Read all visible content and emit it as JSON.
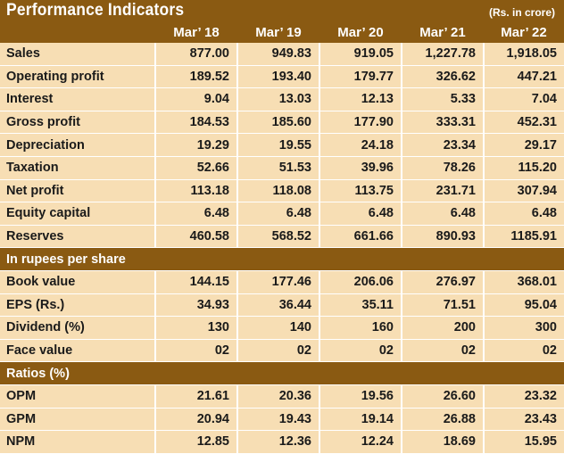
{
  "title": "Performance Indicators",
  "unit": "(Rs. in crore)",
  "columns": [
    "Mar’ 18",
    "Mar’ 19",
    "Mar’ 20",
    "Mar’ 21",
    "Mar’ 22"
  ],
  "colors": {
    "header_bg": "#8a5a12",
    "row_bg": "#f7deb4",
    "header_text": "#ffffff"
  },
  "rows": [
    {
      "type": "data",
      "label": "Sales",
      "values": [
        "877.00",
        "949.83",
        "919.05",
        "1,227.78",
        "1,918.05"
      ]
    },
    {
      "type": "data",
      "label": "Operating profit",
      "values": [
        "189.52",
        "193.40",
        "179.77",
        "326.62",
        "447.21"
      ]
    },
    {
      "type": "data",
      "label": "Interest",
      "values": [
        "9.04",
        "13.03",
        "12.13",
        "5.33",
        "7.04"
      ]
    },
    {
      "type": "data",
      "label": "Gross profit",
      "values": [
        "184.53",
        "185.60",
        "177.90",
        "333.31",
        "452.31"
      ]
    },
    {
      "type": "data",
      "label": "Depreciation",
      "values": [
        "19.29",
        "19.55",
        "24.18",
        "23.34",
        "29.17"
      ]
    },
    {
      "type": "data",
      "label": "Taxation",
      "values": [
        "52.66",
        "51.53",
        "39.96",
        "78.26",
        "115.20"
      ]
    },
    {
      "type": "data",
      "label": "Net profit",
      "values": [
        "113.18",
        "118.08",
        "113.75",
        "231.71",
        "307.94"
      ]
    },
    {
      "type": "data",
      "label": "Equity capital",
      "values": [
        "6.48",
        "6.48",
        "6.48",
        "6.48",
        "6.48"
      ]
    },
    {
      "type": "data",
      "label": "Reserves",
      "values": [
        "460.58",
        "568.52",
        "661.66",
        "890.93",
        "1185.91"
      ]
    },
    {
      "type": "section",
      "label": "In rupees per share"
    },
    {
      "type": "data",
      "label": "Book value",
      "values": [
        "144.15",
        "177.46",
        "206.06",
        "276.97",
        "368.01"
      ]
    },
    {
      "type": "data",
      "label": "EPS (Rs.)",
      "values": [
        "34.93",
        "36.44",
        "35.11",
        "71.51",
        "95.04"
      ]
    },
    {
      "type": "data",
      "label": "Dividend (%)",
      "values": [
        "130",
        "140",
        "160",
        "200",
        "300"
      ]
    },
    {
      "type": "data",
      "label": "Face value",
      "values": [
        "02",
        "02",
        "02",
        "02",
        "02"
      ]
    },
    {
      "type": "section",
      "label": "Ratios (%)"
    },
    {
      "type": "data",
      "label": "OPM",
      "values": [
        "21.61",
        "20.36",
        "19.56",
        "26.60",
        "23.32"
      ]
    },
    {
      "type": "data",
      "label": "GPM",
      "values": [
        "20.94",
        "19.43",
        "19.14",
        "26.88",
        "23.43"
      ]
    },
    {
      "type": "data",
      "label": "NPM",
      "values": [
        "12.85",
        "12.36",
        "12.24",
        "18.69",
        "15.95"
      ]
    }
  ]
}
